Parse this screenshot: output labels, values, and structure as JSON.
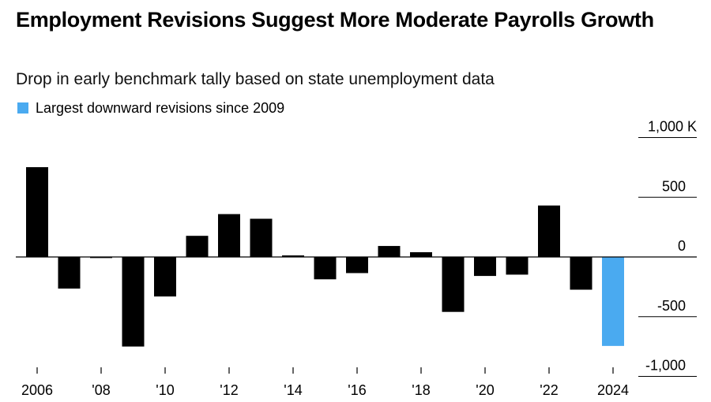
{
  "chart_data": {
    "type": "bar",
    "title": "Employment Revisions Suggest More Moderate Payrolls Growth",
    "subtitle": "Drop in early benchmark tally based on state unemployment data",
    "legend": [
      {
        "label": "Largest downward revisions since 2009",
        "color": "#4aaaf0"
      }
    ],
    "categories": [
      "2006",
      "2007",
      "2008",
      "2009",
      "2010",
      "2011",
      "2012",
      "2013",
      "2014",
      "2015",
      "2016",
      "2017",
      "2018",
      "2019",
      "2020",
      "2021",
      "2022",
      "2023",
      "2024"
    ],
    "values": [
      752,
      -265,
      -9,
      -750,
      -331,
      177,
      359,
      320,
      13,
      -187,
      -135,
      92,
      40,
      -460,
      -159,
      -148,
      431,
      -274,
      -745
    ],
    "highlight_index": 18,
    "bar_color": "#000000",
    "highlight_color": "#4aaaf0",
    "xtick_labels": [
      "2006",
      "'08",
      "'10",
      "'12",
      "'14",
      "'16",
      "'18",
      "'20",
      "'22",
      "2024"
    ],
    "xtick_years": [
      2006,
      2008,
      2010,
      2012,
      2014,
      2016,
      2018,
      2020,
      2022,
      2024
    ],
    "yticks": [
      1000,
      500,
      0,
      -500,
      -1000
    ],
    "ytick_labels": [
      "1,000 K",
      "500",
      "0",
      "-500",
      "-1,000"
    ],
    "ylim": [
      -1000,
      1000
    ],
    "y_axis_position": "right",
    "grid": false
  }
}
